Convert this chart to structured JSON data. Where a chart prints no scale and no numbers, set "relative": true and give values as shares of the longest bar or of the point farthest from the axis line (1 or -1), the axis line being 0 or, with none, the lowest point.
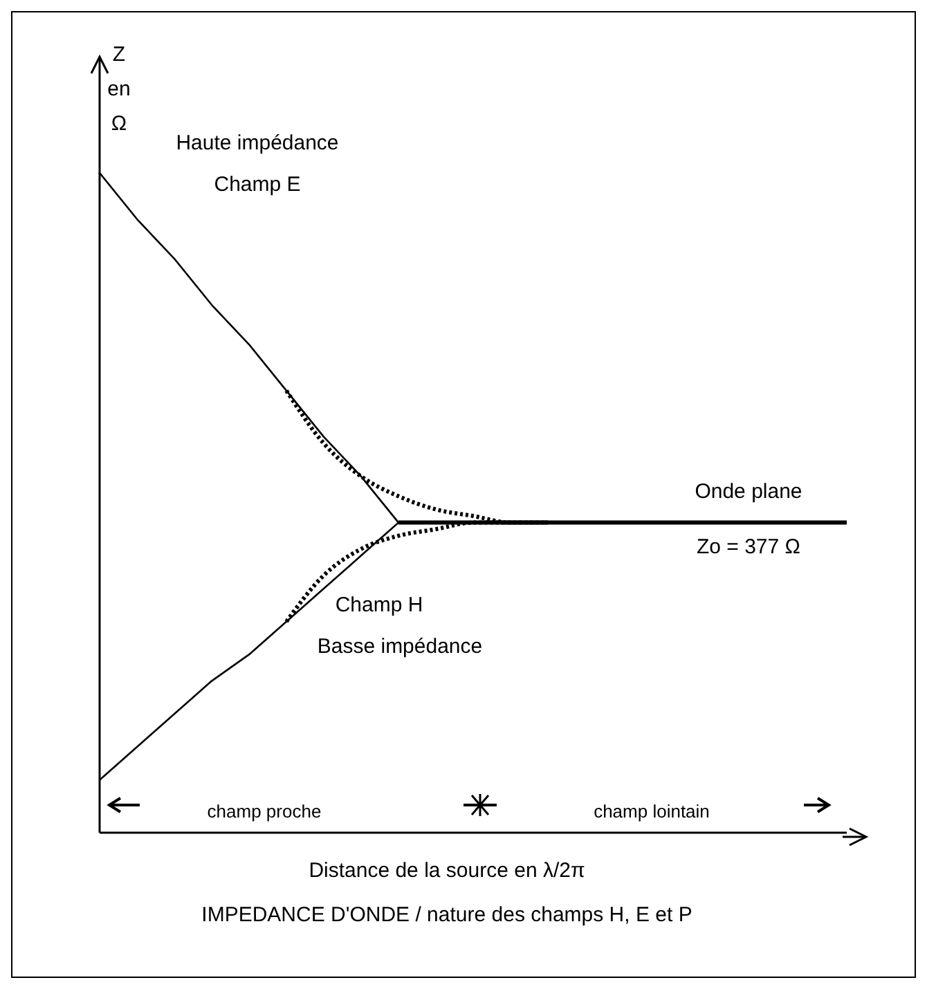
{
  "chart_data": {
    "type": "line",
    "relative": true,
    "title": "IMPEDANCE D'ONDE / nature des champs H, E et P",
    "xlabel": "Distance de la source en λ/2π",
    "ylabel": "Z\nen\nΩ",
    "categories": [
      null,
      null,
      null,
      null,
      null,
      null,
      null,
      null,
      null,
      null,
      null,
      null,
      null,
      null,
      null,
      null,
      null,
      null,
      null,
      null,
      null
    ],
    "series": [
      {
        "color": "#000000",
        "line_style": "solid",
        "values": [
          1,
          0.93,
          0.87,
          0.8,
          0.74,
          0.67,
          0.6,
          0.54,
          0.47,
          null,
          null,
          null,
          null,
          null,
          null,
          null,
          null,
          null,
          null,
          null,
          null
        ]
      },
      {
        "color": "#000000",
        "line_style": "solid",
        "values": [
          0.08,
          0.13,
          0.18,
          0.23,
          0.27,
          0.32,
          0.37,
          0.42,
          0.47,
          null,
          null,
          null,
          null,
          null,
          null,
          null,
          null,
          null,
          null,
          null,
          null
        ]
      },
      {
        "color": "#000000",
        "line_style": "solid",
        "values": [
          null,
          null,
          null,
          null,
          null,
          null,
          null,
          null,
          0.47,
          0.47,
          0.47,
          0.47,
          0.47,
          0.47,
          0.47,
          0.47,
          0.47,
          0.47,
          0.47,
          0.47,
          0.47
        ]
      },
      {
        "color": "#000000",
        "line_style": "dotted",
        "values": [
          null,
          null,
          null,
          null,
          null,
          0.67,
          0.59,
          0.54,
          0.51,
          0.49,
          0.48,
          0.47,
          0.47,
          null,
          null,
          null,
          null,
          null,
          null,
          null,
          null
        ]
      },
      {
        "color": "#000000",
        "line_style": "dotted",
        "values": [
          null,
          null,
          null,
          null,
          null,
          0.32,
          0.39,
          0.43,
          0.45,
          0.46,
          0.47,
          0.47,
          0.47,
          null,
          null,
          null,
          null,
          null,
          null,
          null,
          null
        ]
      }
    ],
    "annotations": [
      "Haute impédance",
      "Champ E",
      "Onde plane",
      "Zo = 377 Ω",
      "Champ H",
      "Basse impédance",
      "champ proche",
      "champ lointain"
    ],
    "grid": false,
    "marker": "none"
  }
}
